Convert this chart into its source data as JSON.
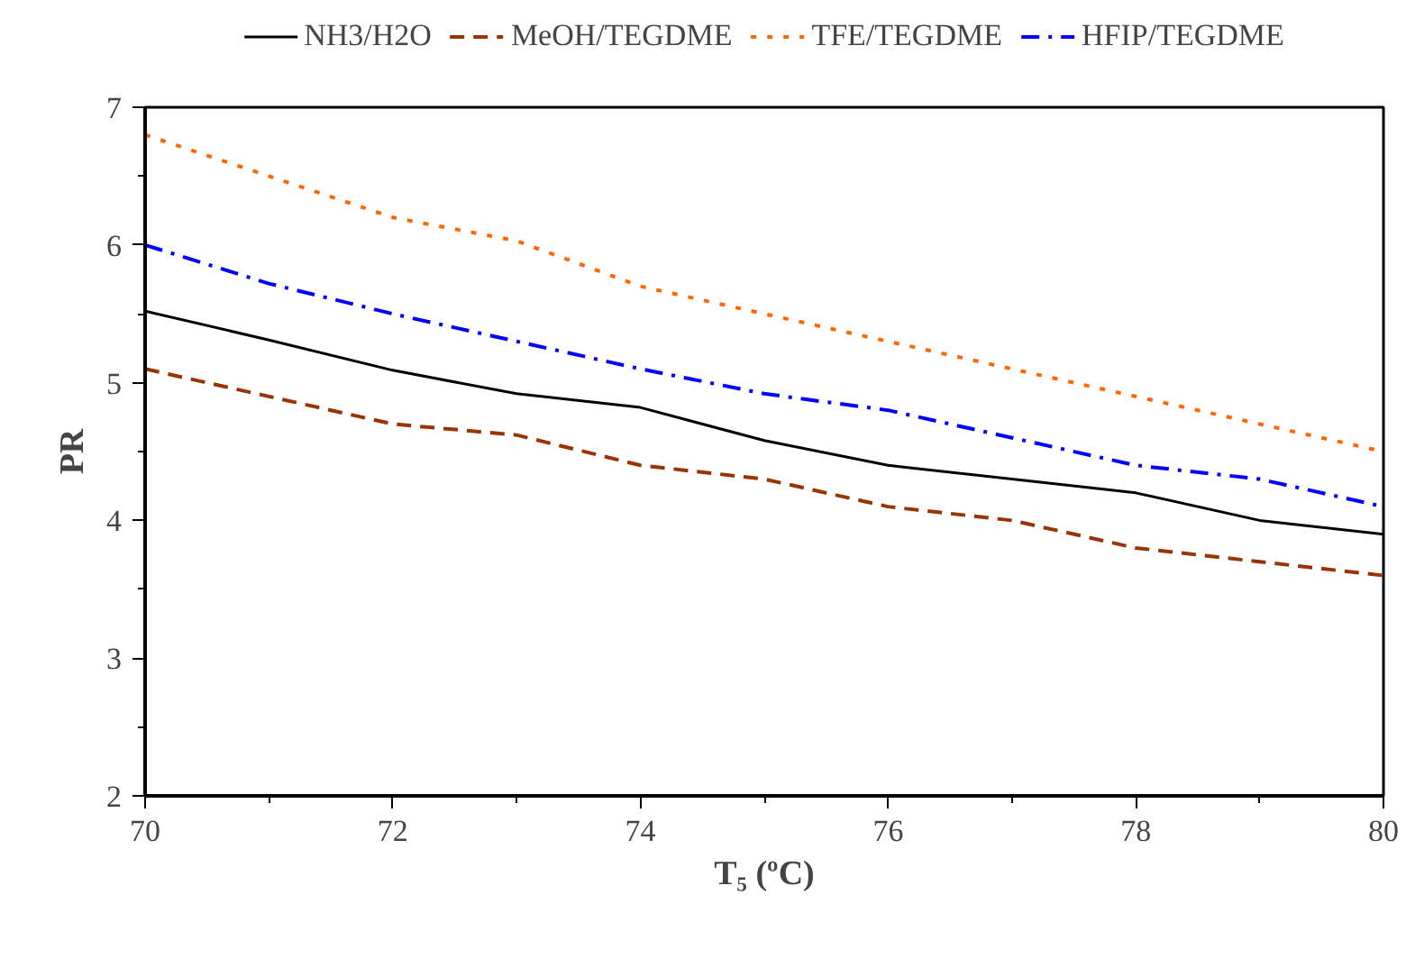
{
  "chart_data": {
    "type": "line",
    "xlabel": "T₅ (ºC)",
    "ylabel": "PR",
    "x": [
      70,
      71,
      72,
      73,
      74,
      75,
      76,
      77,
      78,
      79,
      80
    ],
    "xlim": [
      70,
      80
    ],
    "xticks": [
      70,
      72,
      74,
      76,
      78,
      80
    ],
    "ylim": [
      2,
      7
    ],
    "yticks": [
      2,
      3,
      4,
      5,
      6,
      7
    ],
    "grid": false,
    "legend": "top",
    "marker": "none",
    "series": [
      {
        "name": "NH3/H2O",
        "color": "#000000",
        "line_style": "solid",
        "values": [
          5.52,
          5.31,
          5.09,
          4.92,
          4.82,
          4.58,
          4.4,
          4.3,
          4.2,
          4.0,
          3.9
        ]
      },
      {
        "name": "MeOH/TEGDME",
        "color": "#993300",
        "line_style": "dashed",
        "values": [
          5.1,
          4.9,
          4.7,
          4.62,
          4.4,
          4.3,
          4.1,
          4.0,
          3.8,
          3.7,
          3.6
        ]
      },
      {
        "name": "TFE/TEGDME",
        "color": "#ff6600",
        "line_style": "dotted",
        "values": [
          6.8,
          6.5,
          6.2,
          6.03,
          5.7,
          5.5,
          5.3,
          5.1,
          4.9,
          4.7,
          4.5
        ]
      },
      {
        "name": "HFIP/TEGDME",
        "color": "#0000ff",
        "line_style": "dashdot",
        "values": [
          6.0,
          5.72,
          5.5,
          5.3,
          5.1,
          4.92,
          4.8,
          4.6,
          4.4,
          4.3,
          4.1
        ]
      }
    ]
  }
}
